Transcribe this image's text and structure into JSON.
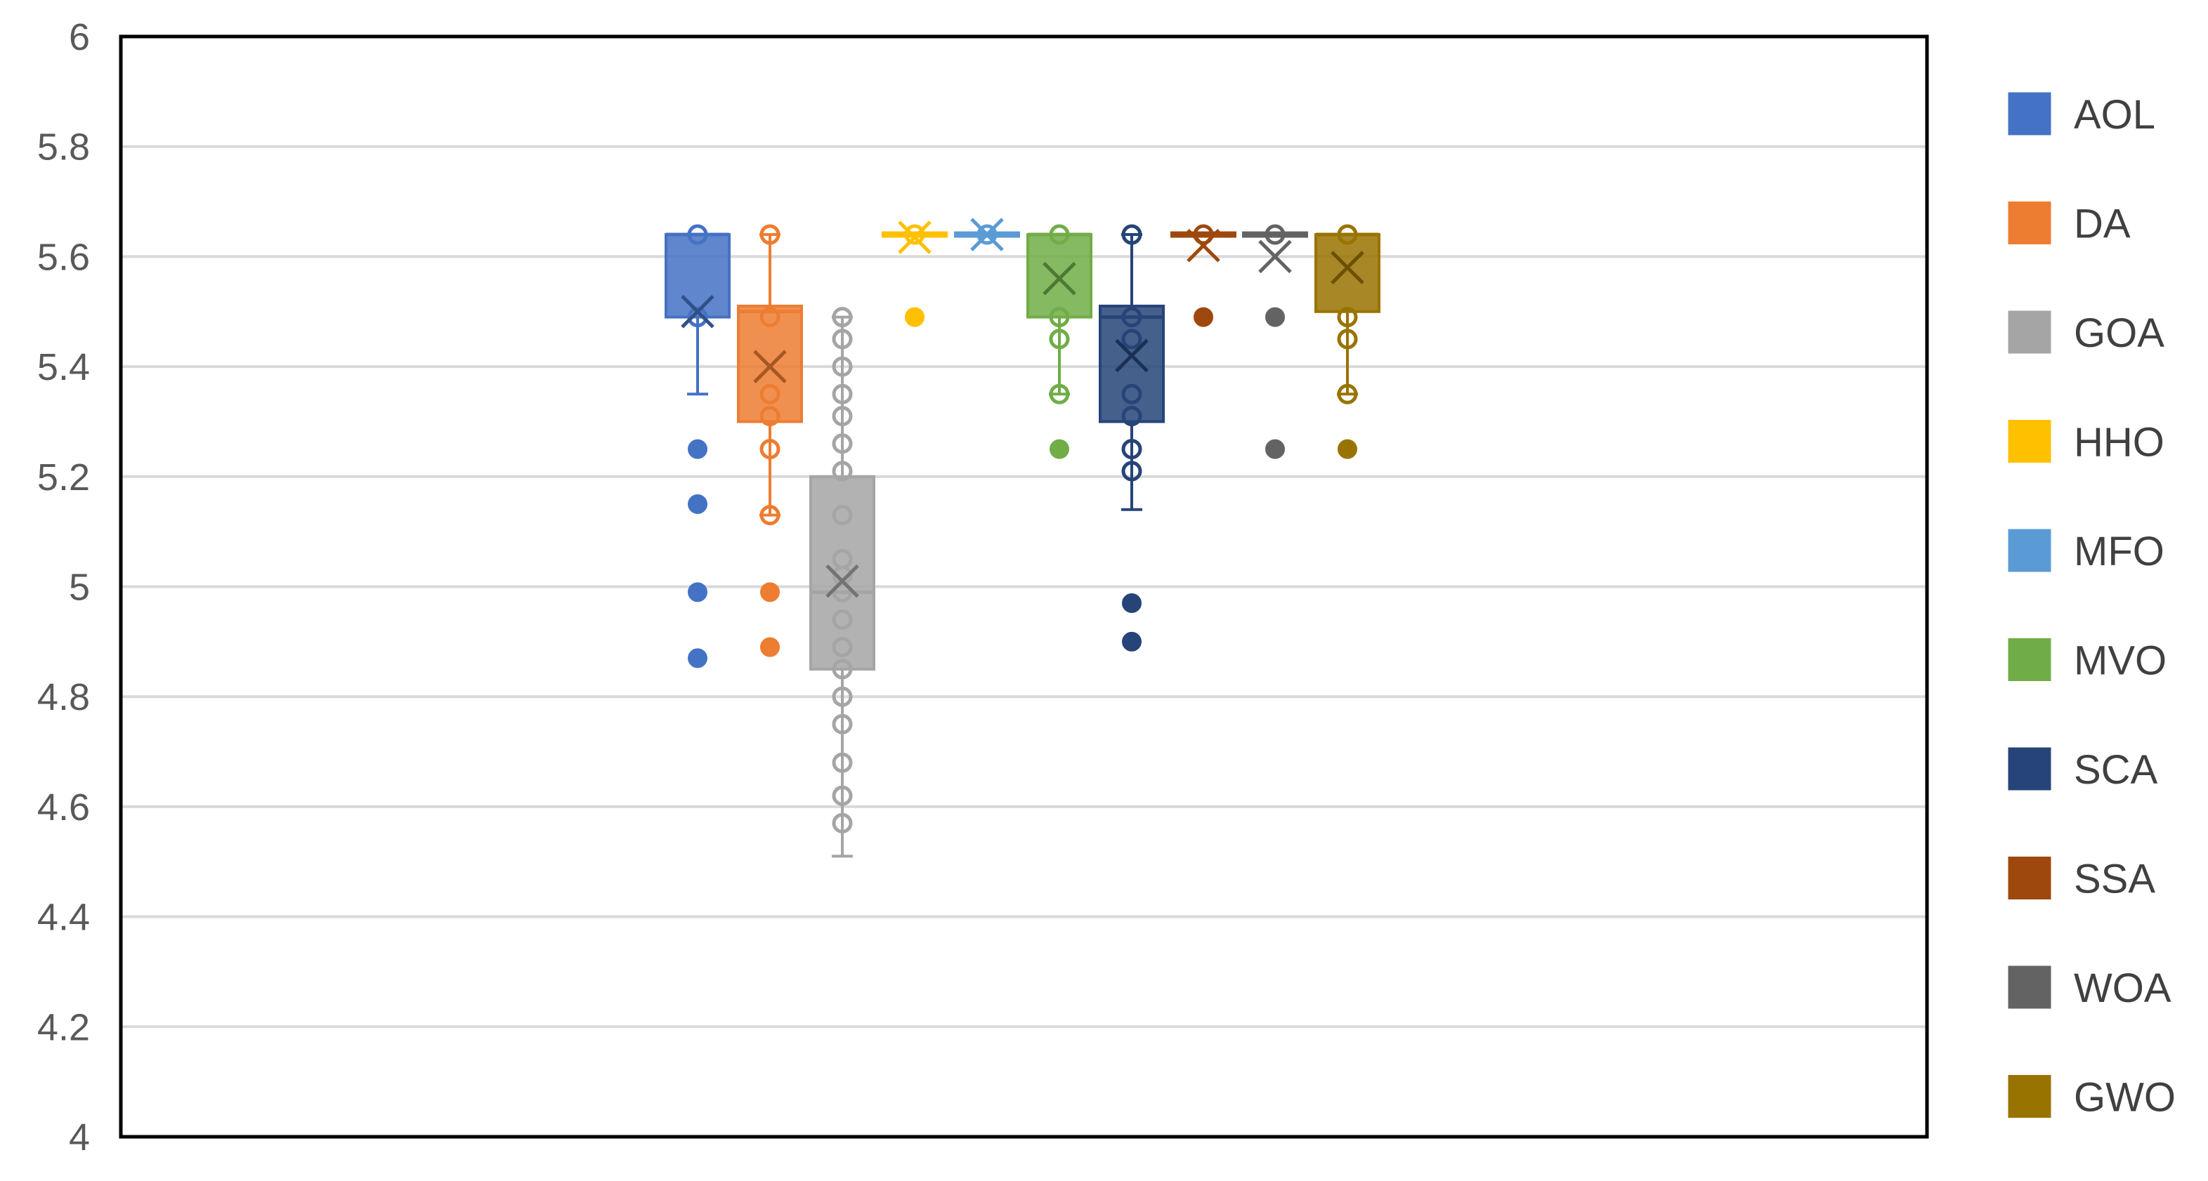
{
  "chart_data": {
    "type": "box",
    "ylim": [
      4,
      6
    ],
    "yticks": [
      4,
      4.2,
      4.4,
      4.6,
      4.8,
      5,
      5.2,
      5.4,
      5.6,
      5.8,
      6
    ],
    "ytick_labels": [
      "4",
      "4.2",
      "4.4",
      "4.6",
      "4.8",
      "5",
      "5.2",
      "5.4",
      "5.6",
      "5.8",
      "6"
    ],
    "grid": true,
    "legend_position": "right",
    "series": [
      {
        "name": "AOL",
        "color": "#4472c4",
        "q1": 5.49,
        "median": 5.64,
        "q3": 5.64,
        "mean": 5.5,
        "whisker_low": 5.35,
        "whisker_high": 5.64,
        "points": [
          5.64,
          5.49
        ],
        "outliers": [
          5.25,
          5.15,
          4.99,
          4.87
        ]
      },
      {
        "name": "DA",
        "color": "#ed7d31",
        "q1": 5.3,
        "median": 5.5,
        "q3": 5.51,
        "mean": 5.4,
        "whisker_low": 5.13,
        "whisker_high": 5.64,
        "points": [
          5.64,
          5.49,
          5.35,
          5.31,
          5.25,
          5.13
        ],
        "outliers": [
          4.99,
          4.89
        ]
      },
      {
        "name": "GOA",
        "color": "#a5a5a5",
        "q1": 4.85,
        "median": 4.99,
        "q3": 5.2,
        "mean": 5.01,
        "whisker_low": 4.51,
        "whisker_high": 5.49,
        "points": [
          5.49,
          5.45,
          5.4,
          5.35,
          5.31,
          5.26,
          5.21,
          5.13,
          5.05,
          5.02,
          4.99,
          4.94,
          4.89,
          4.85,
          4.8,
          4.75,
          4.68,
          4.62,
          4.57
        ],
        "outliers": []
      },
      {
        "name": "HHO",
        "color": "#ffc000",
        "q1": 5.64,
        "median": 5.64,
        "q3": 5.64,
        "mean": 5.635,
        "whisker_low": 5.64,
        "whisker_high": 5.64,
        "points": [
          5.64
        ],
        "outliers": [
          5.49
        ]
      },
      {
        "name": "MFO",
        "color": "#5b9bd5",
        "q1": 5.64,
        "median": 5.64,
        "q3": 5.64,
        "mean": 5.64,
        "whisker_low": 5.64,
        "whisker_high": 5.64,
        "points": [
          5.64
        ],
        "outliers": []
      },
      {
        "name": "MVO",
        "color": "#70ad47",
        "q1": 5.49,
        "median": 5.64,
        "q3": 5.64,
        "mean": 5.56,
        "whisker_low": 5.35,
        "whisker_high": 5.64,
        "points": [
          5.64,
          5.49,
          5.45,
          5.35
        ],
        "outliers": [
          5.25
        ]
      },
      {
        "name": "SCA",
        "color": "#264478",
        "q1": 5.3,
        "median": 5.49,
        "q3": 5.51,
        "mean": 5.42,
        "whisker_low": 5.14,
        "whisker_high": 5.64,
        "points": [
          5.64,
          5.49,
          5.45,
          5.35,
          5.31,
          5.25,
          5.21
        ],
        "outliers": [
          4.97,
          4.9
        ]
      },
      {
        "name": "SSA",
        "color": "#9e480e",
        "q1": 5.64,
        "median": 5.64,
        "q3": 5.64,
        "mean": 5.62,
        "whisker_low": 5.64,
        "whisker_high": 5.64,
        "points": [
          5.64
        ],
        "outliers": [
          5.49
        ]
      },
      {
        "name": "WOA",
        "color": "#636363",
        "q1": 5.64,
        "median": 5.64,
        "q3": 5.64,
        "mean": 5.6,
        "whisker_low": 5.64,
        "whisker_high": 5.64,
        "points": [
          5.64
        ],
        "outliers": [
          5.49,
          5.25
        ]
      },
      {
        "name": "GWO",
        "color": "#997300",
        "q1": 5.5,
        "median": 5.64,
        "q3": 5.64,
        "mean": 5.58,
        "whisker_low": 5.35,
        "whisker_high": 5.64,
        "points": [
          5.64,
          5.49,
          5.45,
          5.35
        ],
        "outliers": [
          5.25
        ]
      }
    ]
  }
}
